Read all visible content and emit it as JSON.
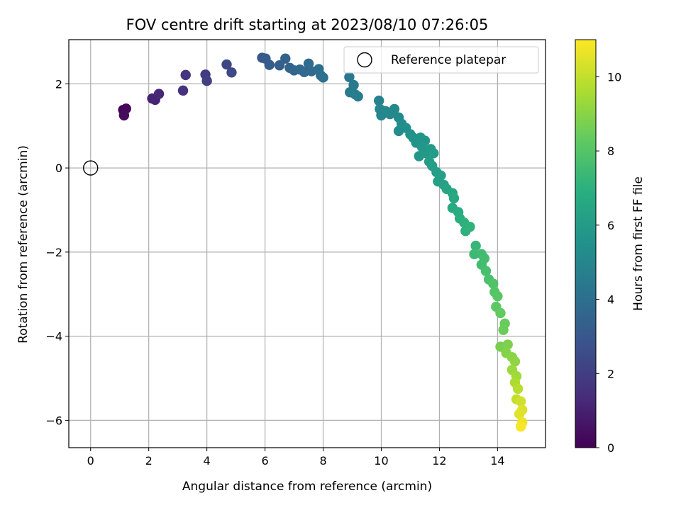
{
  "chart_data": {
    "type": "scatter",
    "title": "FOV centre drift starting at 2023/08/10 07:26:05",
    "xlabel": "Angular distance from reference (arcmin)",
    "ylabel": "Rotation from reference (arcmin)",
    "xlim": [
      -0.75,
      15.65
    ],
    "ylim": [
      -6.65,
      3.05
    ],
    "xticks": [
      0,
      2,
      4,
      6,
      8,
      10,
      12,
      14
    ],
    "yticks": [
      -6,
      -4,
      -2,
      0,
      2
    ],
    "xtick_labels": [
      "0",
      "2",
      "4",
      "6",
      "8",
      "10",
      "12",
      "14"
    ],
    "ytick_labels": [
      "−6",
      "−4",
      "−2",
      "0",
      "2"
    ],
    "grid": true,
    "legend": {
      "placement": "top-right",
      "entries": [
        "Reference platepar"
      ]
    },
    "reference_point": {
      "name": "Reference platepar",
      "x": 0,
      "y": 0
    },
    "colorbar": {
      "label": "Hours from first FF file",
      "colormap": "viridis",
      "range": [
        0,
        11
      ],
      "ticks": [
        0,
        2,
        4,
        6,
        8,
        10
      ],
      "tick_labels": [
        "0",
        "2",
        "4",
        "6",
        "8",
        "10"
      ]
    },
    "series": [
      {
        "points": [
          [
            1.12,
            1.38,
            0.1
          ],
          [
            1.22,
            1.41,
            0.2
          ],
          [
            1.15,
            1.25,
            0.3
          ],
          [
            2.12,
            1.65,
            1.0
          ],
          [
            2.22,
            1.62,
            1.1
          ],
          [
            2.35,
            1.76,
            1.2
          ],
          [
            3.18,
            1.84,
            1.6
          ],
          [
            3.27,
            2.21,
            1.7
          ],
          [
            3.95,
            2.22,
            1.9
          ],
          [
            4.0,
            2.07,
            2.0
          ],
          [
            4.68,
            2.46,
            2.3
          ],
          [
            4.85,
            2.27,
            2.4
          ],
          [
            5.9,
            2.62,
            3.0
          ],
          [
            6.02,
            2.6,
            3.1
          ],
          [
            6.15,
            2.45,
            3.2
          ],
          [
            6.5,
            2.44,
            3.3
          ],
          [
            6.7,
            2.6,
            3.4
          ],
          [
            6.85,
            2.38,
            3.5
          ],
          [
            7.0,
            2.32,
            3.6
          ],
          [
            7.2,
            2.34,
            3.7
          ],
          [
            7.35,
            2.28,
            3.7
          ],
          [
            7.5,
            2.48,
            3.8
          ],
          [
            7.6,
            2.3,
            3.8
          ],
          [
            7.85,
            2.35,
            3.9
          ],
          [
            7.92,
            2.2,
            4.0
          ],
          [
            8.0,
            2.15,
            4.1
          ],
          [
            8.9,
            2.16,
            4.4
          ],
          [
            9.05,
            1.97,
            4.5
          ],
          [
            8.92,
            1.8,
            4.5
          ],
          [
            9.1,
            1.75,
            4.6
          ],
          [
            9.2,
            1.7,
            4.6
          ],
          [
            9.92,
            1.6,
            4.9
          ],
          [
            9.95,
            1.4,
            5.0
          ],
          [
            10.0,
            1.25,
            5.0
          ],
          [
            10.15,
            1.35,
            5.1
          ],
          [
            10.3,
            1.28,
            5.1
          ],
          [
            10.45,
            1.4,
            5.2
          ],
          [
            10.6,
            1.2,
            5.2
          ],
          [
            10.7,
            1.05,
            5.3
          ],
          [
            10.6,
            0.88,
            5.3
          ],
          [
            10.85,
            0.95,
            5.4
          ],
          [
            11.0,
            0.8,
            5.5
          ],
          [
            11.1,
            0.72,
            5.6
          ],
          [
            11.2,
            0.6,
            5.6
          ],
          [
            11.35,
            0.72,
            5.7
          ],
          [
            11.5,
            0.65,
            5.7
          ],
          [
            11.4,
            0.5,
            5.8
          ],
          [
            11.3,
            0.28,
            5.8
          ],
          [
            11.55,
            0.35,
            5.9
          ],
          [
            11.7,
            0.45,
            5.9
          ],
          [
            11.65,
            0.15,
            6.0
          ],
          [
            11.8,
            0.35,
            6.0
          ],
          [
            11.75,
            0.05,
            6.1
          ],
          [
            11.9,
            -0.1,
            6.1
          ],
          [
            12.05,
            -0.18,
            6.2
          ],
          [
            11.95,
            -0.32,
            6.2
          ],
          [
            12.15,
            -0.4,
            6.3
          ],
          [
            12.25,
            -0.5,
            6.4
          ],
          [
            12.45,
            -0.6,
            6.5
          ],
          [
            12.5,
            -0.72,
            6.6
          ],
          [
            12.45,
            -0.95,
            6.7
          ],
          [
            12.65,
            -1.05,
            6.8
          ],
          [
            12.7,
            -1.2,
            6.9
          ],
          [
            12.85,
            -1.3,
            7.0
          ],
          [
            12.9,
            -1.5,
            7.0
          ],
          [
            13.05,
            -1.4,
            7.1
          ],
          [
            13.25,
            -1.85,
            7.3
          ],
          [
            13.2,
            -2.05,
            7.4
          ],
          [
            13.45,
            -2.05,
            7.5
          ],
          [
            13.55,
            -2.15,
            7.6
          ],
          [
            13.45,
            -2.3,
            7.6
          ],
          [
            13.6,
            -2.45,
            7.7
          ],
          [
            13.7,
            -2.65,
            7.8
          ],
          [
            13.85,
            -2.75,
            7.9
          ],
          [
            13.9,
            -2.95,
            8.0
          ],
          [
            14.0,
            -3.05,
            8.1
          ],
          [
            13.95,
            -3.3,
            8.2
          ],
          [
            14.1,
            -3.45,
            8.3
          ],
          [
            14.25,
            -3.7,
            8.4
          ],
          [
            14.2,
            -3.85,
            8.5
          ],
          [
            14.1,
            -4.25,
            8.7
          ],
          [
            14.35,
            -4.2,
            8.8
          ],
          [
            14.3,
            -4.4,
            8.9
          ],
          [
            14.5,
            -4.5,
            9.0
          ],
          [
            14.6,
            -4.6,
            9.1
          ],
          [
            14.5,
            -4.8,
            9.3
          ],
          [
            14.65,
            -4.95,
            9.4
          ],
          [
            14.6,
            -5.1,
            9.6
          ],
          [
            14.7,
            -5.25,
            9.8
          ],
          [
            14.65,
            -5.5,
            10.0
          ],
          [
            14.8,
            -5.55,
            10.2
          ],
          [
            14.85,
            -5.75,
            10.4
          ],
          [
            14.75,
            -5.85,
            10.5
          ],
          [
            14.85,
            -6.05,
            10.7
          ],
          [
            14.8,
            -6.15,
            10.9
          ]
        ]
      }
    ]
  }
}
